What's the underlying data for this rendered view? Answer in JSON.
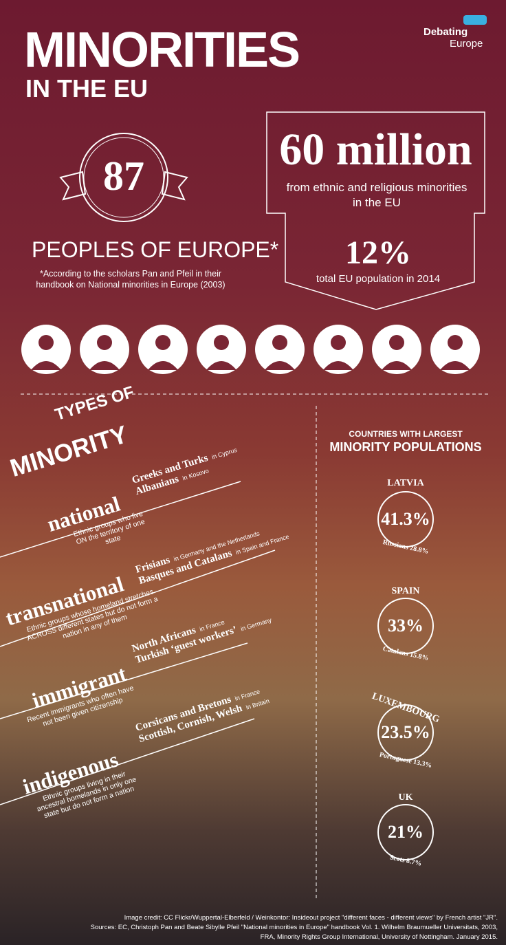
{
  "header": {
    "title": "MINORITIES",
    "subtitle": "IN THE EU",
    "logo_top": "Debating",
    "logo_bottom": "Europe"
  },
  "peoples": {
    "number": "87",
    "label": "PEOPLES OF EUROPE*",
    "note": "*According to the scholars Pan and Pfeil in their handbook on National minorities in Europe (2003)"
  },
  "population": {
    "headline": "60 million",
    "caption": "from ethnic and religious minorities in the EU",
    "share": "12%",
    "share_caption": "total EU population in 2014"
  },
  "types": {
    "title_top": "TYPES OF",
    "title_bottom": "MINORITY",
    "items": [
      {
        "name": "national",
        "description": "Ethnic groups who live ON the territory of one state",
        "examples": [
          {
            "group": "Greeks and Turks",
            "place": "in Cyprus"
          },
          {
            "group": "Albanians",
            "place": "in Kosovo"
          }
        ]
      },
      {
        "name": "transnational",
        "description": "Ethnic groups whose homeland stretches ACROSS different states but do not form a nation in any of them",
        "examples": [
          {
            "group": "Frisians",
            "place": "in Germany and the Netherlands"
          },
          {
            "group": "Basques and Catalans",
            "place": "in Spain and France"
          }
        ]
      },
      {
        "name": "immigrant",
        "description": "Recent immigrants who often have not been given citizenship",
        "examples": [
          {
            "group": "North Africans",
            "place": "in France"
          },
          {
            "group": "Turkish ‘guest workers’",
            "place": "in Germany"
          }
        ]
      },
      {
        "name": "indigenous",
        "description": "Ethnic groups living in their ancestral homelands in only one state but do not form a nation",
        "examples": [
          {
            "group": "Corsicans and Bretons",
            "place": "in France"
          },
          {
            "group": "Scottish, Cornish, Welsh",
            "place": "in Britain"
          }
        ]
      }
    ]
  },
  "countries": {
    "title_top": "COUNTRIES WITH LARGEST",
    "title_bottom": "MINORITY POPULATIONS",
    "items": [
      {
        "name": "LATVIA",
        "share": "41.3%",
        "largest": "Russians 28.8%"
      },
      {
        "name": "SPAIN",
        "share": "33%",
        "largest": "Catalans 15.8%"
      },
      {
        "name": "LUXEMBOURG",
        "share": "23.5%",
        "largest": "Portuguese 13.3%"
      },
      {
        "name": "UK",
        "share": "21%",
        "largest": "Scots 8.7%"
      }
    ]
  },
  "credits": [
    "Image credit: CC Flickr/Wuppertal-Elberfeld / Weinkontor: Insideout project \"different faces - different views\" by French artist \"JR\".",
    "Sources: EC, Christoph Pan and Beate Sibylle Pfeil \"National minorities in Europe\" handbook Vol. 1. Wilhelm Braumueller Universitats, 2003,",
    "FRA, Minority Rights Group International, University of Nottingham. January 2015."
  ]
}
